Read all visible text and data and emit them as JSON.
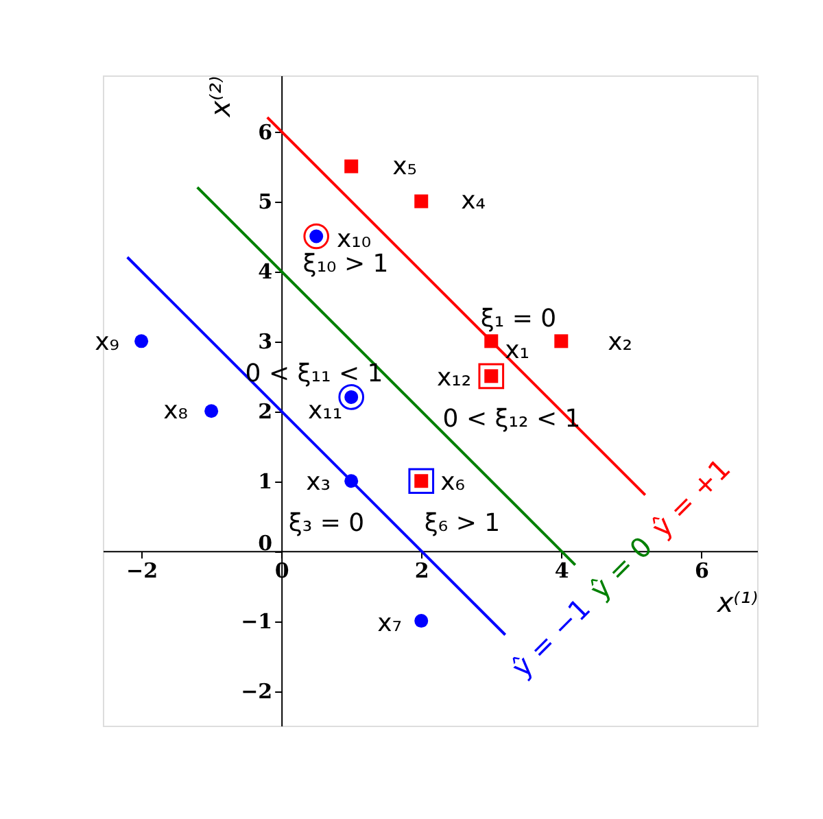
{
  "chart_data": {
    "type": "scatter",
    "xlabel": "x⁽¹⁾",
    "ylabel": "x⁽²⁾",
    "xlim": [
      -2.55,
      6.8
    ],
    "ylim": [
      -2.5,
      6.8
    ],
    "xticks": [
      -2,
      0,
      2,
      4,
      6
    ],
    "yticks": [
      -2,
      -1,
      0,
      1,
      2,
      3,
      4,
      5,
      6
    ],
    "grid": false,
    "series": [
      {
        "type": "line",
        "name": "ŷ = +1",
        "color": "#ff0000",
        "line_style": "solid",
        "x": [
          -0.2,
          5.2
        ],
        "values": [
          6.2,
          0.8
        ]
      },
      {
        "type": "line",
        "name": "ŷ = 0",
        "color": "#008000",
        "line_style": "solid",
        "x": [
          -1.2,
          4.2
        ],
        "values": [
          5.2,
          -0.2
        ]
      },
      {
        "type": "line",
        "name": "ŷ = −1",
        "color": "#0000ff",
        "line_style": "solid",
        "x": [
          -2.2,
          3.2
        ],
        "values": [
          4.2,
          -1.2
        ]
      },
      {
        "marker": "square",
        "color": "#ff0000",
        "x": [
          3
        ],
        "values": [
          2.5
        ]
      },
      {
        "marker": "square",
        "color": "#0000ff",
        "x": [
          2
        ],
        "values": [
          1
        ]
      },
      {
        "marker": "circle",
        "color": "#ff0000",
        "x": [
          0.5
        ],
        "values": [
          4.5
        ]
      },
      {
        "marker": "circle",
        "color": "#0000ff",
        "x": [
          1
        ],
        "values": [
          2.2
        ]
      },
      {
        "marker": "square",
        "color": "#ff0000",
        "x": [
          3,
          4,
          2,
          1,
          3,
          2
        ],
        "values": [
          3,
          3,
          5,
          5.5,
          2.5,
          1
        ]
      },
      {
        "marker": "circle",
        "color": "#0000ff",
        "x": [
          1,
          2,
          -1,
          -2,
          0.5,
          1
        ],
        "values": [
          1,
          -1,
          2,
          3,
          4.5,
          2.2
        ]
      }
    ],
    "annotations": [
      "x₁",
      "x₂",
      "x₃",
      "x₄",
      "x₅",
      "x₆",
      "x₇",
      "x₈",
      "x₉",
      "x₁₀",
      "x₁₁",
      "x₁₂",
      "ξ₁₀ > 1",
      "ξ₁ = 0",
      "0 < ξ₁₁ < 1",
      "0 < ξ₁₂ < 1",
      "ξ₃ = 0",
      "ξ₆ > 1"
    ]
  }
}
